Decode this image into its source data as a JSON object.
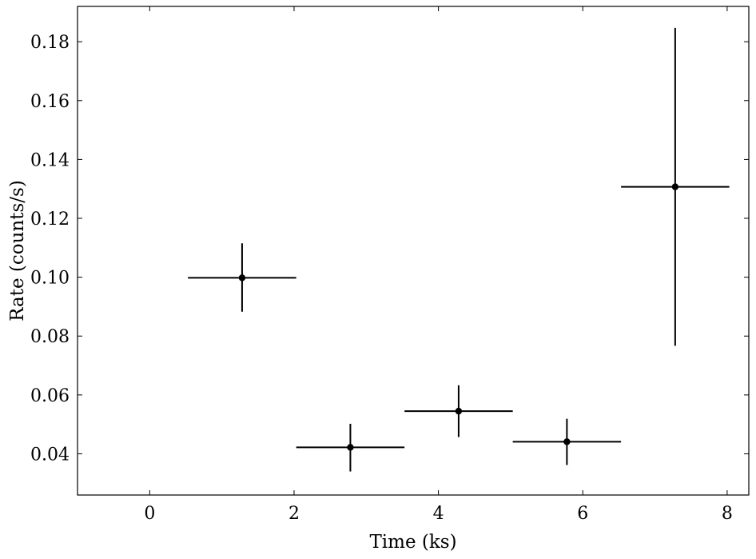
{
  "chart_data": {
    "type": "scatter",
    "title": "",
    "xlabel": "Time (ks)",
    "ylabel": "Rate (counts/s)",
    "xlim": [
      -1.0,
      8.3
    ],
    "ylim": [
      0.026,
      0.192
    ],
    "x_ticks": [
      0,
      2,
      4,
      6,
      8
    ],
    "y_ticks": [
      0.04,
      0.06,
      0.08,
      0.1,
      0.12,
      0.14,
      0.16,
      0.18
    ],
    "x_tick_labels": [
      "0",
      "2",
      "4",
      "6",
      "8"
    ],
    "y_tick_labels": [
      "0.04",
      "0.06",
      "0.08",
      "0.10",
      "0.12",
      "0.14",
      "0.16",
      "0.18"
    ],
    "grid": false,
    "legend": "none",
    "series": [
      {
        "x": [
          1.28,
          2.78,
          4.28,
          5.78,
          7.28
        ],
        "x_err": [
          0.75,
          0.75,
          0.75,
          0.75,
          0.75
        ],
        "y": [
          0.0998,
          0.0422,
          0.0545,
          0.0441,
          0.1307
        ],
        "y_err_low": [
          0.0115,
          0.0082,
          0.0088,
          0.0079,
          0.054
        ],
        "y_err_high": [
          0.0117,
          0.008,
          0.0088,
          0.0078,
          0.054
        ],
        "color": "#000000"
      }
    ]
  }
}
